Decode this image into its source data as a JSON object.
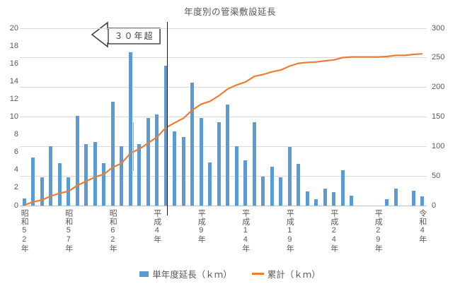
{
  "title": "年度別の管渠敷設延長",
  "colors": {
    "bar": "#5b9bd5",
    "line": "#ed7d31",
    "grid": "#d9d9d9",
    "axis_text": "#595959",
    "annotation_outline": "#404040",
    "divider": "#1a1a1a",
    "gray_line": "#a6a6a6"
  },
  "annotation": {
    "arrow_label": "３０年超"
  },
  "legend": {
    "items": [
      {
        "label": "単年度延長（ｋｍ）",
        "swatch": "bar"
      },
      {
        "label": "累計（ｋｍ）",
        "swatch": "line"
      }
    ]
  },
  "chart_data": {
    "type": "bar",
    "subtype": "combo-bar-line",
    "title": "年度別の管渠敷設延長",
    "x_count": 46,
    "x_tick_labels": [
      {
        "index": 0,
        "label": "昭和52年"
      },
      {
        "index": 5,
        "label": "昭和57年"
      },
      {
        "index": 10,
        "label": "昭和62年"
      },
      {
        "index": 15,
        "label": "平成4年"
      },
      {
        "index": 20,
        "label": "平成9年"
      },
      {
        "index": 25,
        "label": "平成14年"
      },
      {
        "index": 30,
        "label": "平成19年"
      },
      {
        "index": 35,
        "label": "平成24年"
      },
      {
        "index": 40,
        "label": "平成29年"
      },
      {
        "index": 45,
        "label": "令和4年"
      }
    ],
    "left_axis": {
      "min": 0,
      "max": 20,
      "step": 2,
      "label": ""
    },
    "right_axis": {
      "min": 0,
      "max": 300,
      "step": 50,
      "label": ""
    },
    "grid": "horizontal",
    "legend_position": "bottom",
    "series": [
      {
        "name": "単年度延長（ｋｍ）",
        "type": "bar",
        "axis": "left",
        "color": "#5b9bd5",
        "values": [
          0.8,
          5.4,
          3.2,
          6.7,
          4.8,
          3.2,
          10.1,
          6.9,
          7.2,
          4.8,
          11.7,
          6.7,
          17.3,
          6.9,
          9.9,
          10.3,
          15.8,
          8.4,
          7.7,
          13.9,
          9.9,
          4.9,
          9.4,
          11.4,
          6.7,
          5.1,
          9.4,
          3.3,
          4.4,
          3.2,
          6.6,
          4.7,
          1.6,
          0.7,
          1.9,
          1.5,
          4.0,
          1.1,
          0,
          0,
          0,
          0.7,
          1.9,
          0,
          1.7,
          1.0
        ]
      },
      {
        "name": "累計（ｋｍ）",
        "type": "line",
        "axis": "right",
        "color": "#ed7d31",
        "values": [
          0.8,
          6.2,
          9.4,
          16.1,
          20.9,
          24.1,
          34.2,
          41.1,
          48.3,
          53.1,
          64.8,
          71.5,
          88.8,
          95.7,
          105.6,
          115.9,
          131.7,
          140.1,
          147.8,
          161.7,
          171.6,
          176.5,
          185.9,
          197.3,
          204.0,
          209.1,
          218.5,
          221.8,
          226.2,
          229.4,
          236.0,
          240.7,
          242.3,
          243.0,
          244.9,
          246.4,
          250.4,
          251.5,
          251.5,
          251.5,
          251.5,
          252.2,
          254.1,
          254.1,
          255.8,
          256.8
        ]
      }
    ],
    "annotations": {
      "arrow_label": "３０年超",
      "divider_slot": 16.64,
      "gray_line": {
        "slot": 12.77,
        "value_from": 3.9,
        "value_to": 9.4
      }
    }
  }
}
